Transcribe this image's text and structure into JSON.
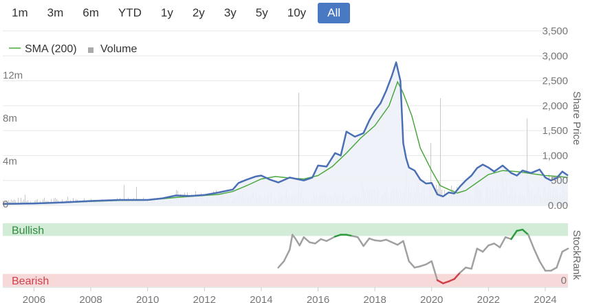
{
  "range_buttons": [
    {
      "label": "1m",
      "active": false
    },
    {
      "label": "3m",
      "active": false
    },
    {
      "label": "6m",
      "active": false
    },
    {
      "label": "YTD",
      "active": false
    },
    {
      "label": "1y",
      "active": false
    },
    {
      "label": "2y",
      "active": false
    },
    {
      "label": "3y",
      "active": false
    },
    {
      "label": "5y",
      "active": false
    },
    {
      "label": "10y",
      "active": false
    },
    {
      "label": "All",
      "active": true
    }
  ],
  "legend": {
    "sma_label": "SMA (200)",
    "volume_label": "Volume"
  },
  "colors": {
    "price": "#4a6fb5",
    "price_area": "#eef1f8",
    "sma": "#4aa83c",
    "volume": "#c8c8c8",
    "bullish_band": "#d3ecd8",
    "bearish_band": "#f7d9da",
    "bullish_text": "#2e8b3d",
    "bearish_text": "#d0404a",
    "rank_neutral": "#a0a0a0",
    "rank_bull": "#2e9b3e",
    "rank_bear": "#d04048",
    "active_button": "#4a79c4"
  },
  "chart_data": [
    {
      "type": "line",
      "y_axis_title": "Share Price",
      "y_ticks": [
        "0.00",
        "500",
        "1,000",
        "1,500",
        "2,000",
        "2,500",
        "3,000",
        "3,500"
      ],
      "ylim": [
        0,
        3500
      ],
      "volume_ticks": [
        "0",
        "4m",
        "8m",
        "12m"
      ],
      "volume_ylim": [
        0,
        16000000
      ],
      "x_ticks": [
        "2006",
        "2008",
        "2010",
        "2012",
        "2014",
        "2016",
        "2018",
        "2020",
        "2022",
        "2024"
      ],
      "xlim": [
        2004.9,
        2024.8
      ],
      "series": [
        {
          "name": "Price",
          "x": [
            2004.9,
            2006.0,
            2007.0,
            2008.0,
            2009.0,
            2010.0,
            2010.5,
            2011.0,
            2011.5,
            2012.0,
            2012.5,
            2013.0,
            2013.2,
            2013.5,
            2013.8,
            2014.0,
            2014.3,
            2014.6,
            2015.0,
            2015.5,
            2015.8,
            2016.0,
            2016.3,
            2016.6,
            2016.8,
            2017.0,
            2017.3,
            2017.6,
            2017.8,
            2018.0,
            2018.2,
            2018.4,
            2018.6,
            2018.75,
            2018.9,
            2019.0,
            2019.1,
            2019.2,
            2019.4,
            2019.6,
            2019.8,
            2020.0,
            2020.2,
            2020.4,
            2020.6,
            2020.8,
            2021.0,
            2021.2,
            2021.4,
            2021.6,
            2021.8,
            2022.0,
            2022.2,
            2022.5,
            2022.8,
            2023.0,
            2023.2,
            2023.5,
            2023.8,
            2024.0,
            2024.2,
            2024.4,
            2024.6,
            2024.8
          ],
          "values": [
            30,
            40,
            60,
            90,
            110,
            110,
            140,
            200,
            190,
            210,
            260,
            320,
            450,
            520,
            580,
            600,
            520,
            460,
            560,
            500,
            560,
            800,
            780,
            1050,
            1000,
            1480,
            1380,
            1450,
            1700,
            1900,
            2050,
            2300,
            2600,
            2870,
            2500,
            1250,
            950,
            760,
            700,
            520,
            440,
            450,
            220,
            180,
            260,
            240,
            380,
            500,
            600,
            750,
            820,
            760,
            680,
            800,
            650,
            600,
            700,
            650,
            720,
            560,
            500,
            550,
            680,
            600
          ]
        },
        {
          "name": "SMA (200)",
          "x": [
            2004.9,
            2006.0,
            2007.0,
            2008.0,
            2009.0,
            2010.0,
            2011.0,
            2012.0,
            2012.5,
            2013.0,
            2013.5,
            2014.0,
            2014.5,
            2015.0,
            2015.5,
            2016.0,
            2016.5,
            2017.0,
            2017.5,
            2018.0,
            2018.5,
            2018.8,
            2019.0,
            2019.3,
            2019.6,
            2020.0,
            2020.3,
            2020.6,
            2020.9,
            2021.2,
            2021.5,
            2022.0,
            2022.5,
            2023.0,
            2023.5,
            2024.0,
            2024.5,
            2024.8
          ],
          "values": [
            25,
            35,
            55,
            80,
            100,
            105,
            160,
            200,
            220,
            280,
            400,
            530,
            580,
            550,
            530,
            600,
            780,
            1050,
            1350,
            1600,
            2000,
            2480,
            2250,
            1800,
            1150,
            700,
            400,
            320,
            250,
            300,
            420,
            620,
            700,
            680,
            640,
            600,
            580,
            560
          ]
        }
      ]
    },
    {
      "type": "line",
      "y_axis_title": "StockRank",
      "y_ticks": [
        "0"
      ],
      "ylim": [
        0,
        100
      ],
      "bands": [
        {
          "label": "Bullish",
          "from": 80,
          "to": 100
        },
        {
          "label": "Bearish",
          "from": 0,
          "to": 20
        }
      ],
      "series": [
        {
          "name": "StockRank",
          "x": [
            2014.6,
            2014.8,
            2015.0,
            2015.1,
            2015.2,
            2015.35,
            2015.5,
            2015.7,
            2015.9,
            2016.1,
            2016.3,
            2016.6,
            2016.8,
            2017.0,
            2017.2,
            2017.4,
            2017.6,
            2017.8,
            2018.0,
            2018.2,
            2018.4,
            2018.6,
            2018.8,
            2019.0,
            2019.2,
            2019.4,
            2019.6,
            2019.8,
            2020.0,
            2020.2,
            2020.4,
            2020.6,
            2020.8,
            2021.0,
            2021.2,
            2021.4,
            2021.6,
            2021.8,
            2022.0,
            2022.2,
            2022.4,
            2022.6,
            2022.8,
            2023.0,
            2023.2,
            2023.4,
            2023.6,
            2023.8,
            2024.0,
            2024.2,
            2024.4,
            2024.6,
            2024.8
          ],
          "values": [
            30,
            40,
            58,
            82,
            76,
            65,
            78,
            70,
            68,
            75,
            72,
            79,
            82,
            82,
            80,
            78,
            64,
            76,
            73,
            72,
            74,
            70,
            66,
            72,
            40,
            30,
            32,
            35,
            40,
            10,
            5,
            8,
            12,
            22,
            30,
            28,
            60,
            55,
            65,
            68,
            62,
            78,
            75,
            88,
            90,
            82,
            60,
            40,
            25,
            25,
            30,
            55,
            60
          ]
        }
      ]
    }
  ]
}
